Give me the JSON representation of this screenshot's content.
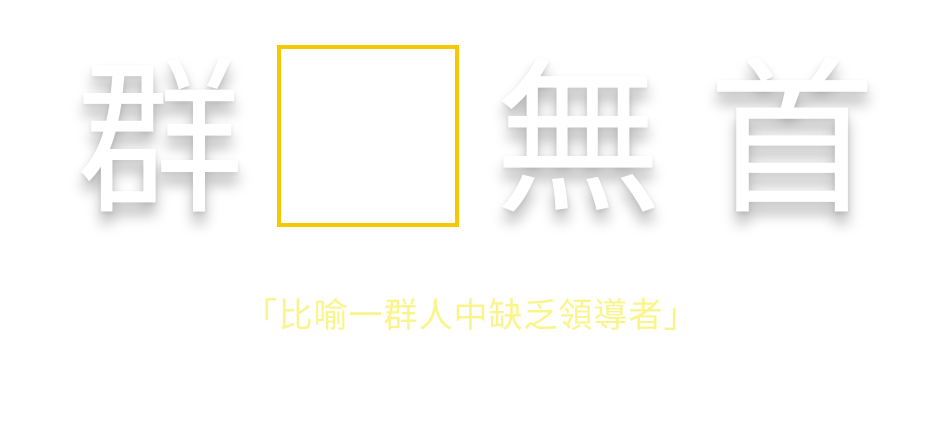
{
  "puzzle": {
    "chars": [
      "群",
      "",
      "無",
      "首"
    ],
    "blank_border_color": "#f5c800"
  },
  "hint": {
    "text": "「比喻一群人中缺乏領導者」",
    "color": "#fbf48a"
  }
}
